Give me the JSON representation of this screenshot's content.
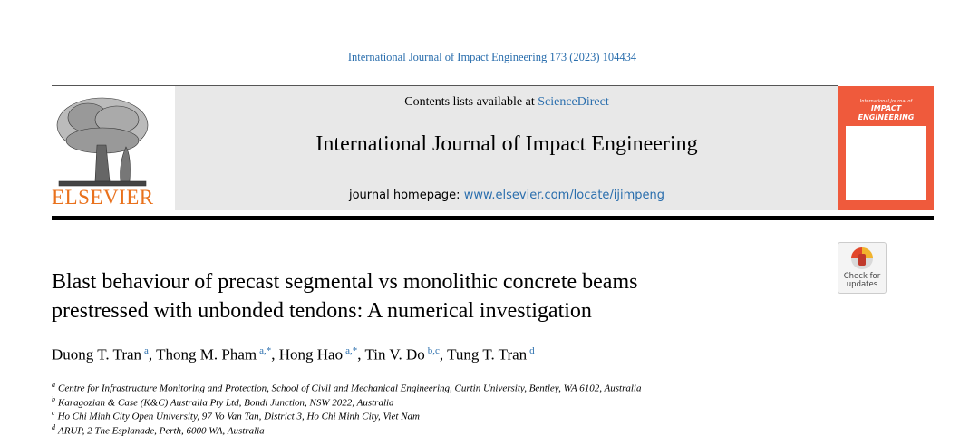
{
  "journal_ref": "International Journal of Impact Engineering 173 (2023) 104434",
  "header": {
    "contents_prefix": "Contents lists available at ",
    "contents_link": "ScienceDirect",
    "journal_title": "International Journal of Impact Engineering",
    "homepage_prefix": "journal homepage: ",
    "homepage_link": "www.elsevier.com/locate/ijimpeng",
    "publisher": "ELSEVIER",
    "cover": {
      "line1": "International Journal of",
      "line2": "IMPACT",
      "line3": "ENGINEERING"
    }
  },
  "check_updates": {
    "line1": "Check for",
    "line2": "updates"
  },
  "title": {
    "lines": [
      "Blast behaviour of precast segmental vs monolithic concrete beams",
      "prestressed with unbonded tendons: A numerical investigation"
    ]
  },
  "authors": {
    "separator": ", ",
    "list": [
      {
        "name": "Duong T. Tran",
        "sup": "a"
      },
      {
        "name": "Thong M. Pham",
        "sup": "a,*"
      },
      {
        "name": "Hong Hao",
        "sup": "a,*"
      },
      {
        "name": "Tin V. Do",
        "sup": "b,c"
      },
      {
        "name": "Tung T. Tran",
        "sup": "d"
      }
    ]
  },
  "affiliations": [
    {
      "mark": "a",
      "text": "Centre for Infrastructure Monitoring and Protection, School of Civil and Mechanical Engineering, Curtin University, Bentley, WA 6102, Australia"
    },
    {
      "mark": "b",
      "text": "Karagozian & Case (K&C) Australia Pty Ltd, Bondi Junction, NSW 2022, Australia"
    },
    {
      "mark": "c",
      "text": "Ho Chi Minh City Open University, 97 Vo Van Tan, District 3, Ho Chi Minh City, Viet Nam"
    },
    {
      "mark": "d",
      "text": "ARUP, 2 The Esplanade, Perth, 6000 WA, Australia"
    }
  ]
}
